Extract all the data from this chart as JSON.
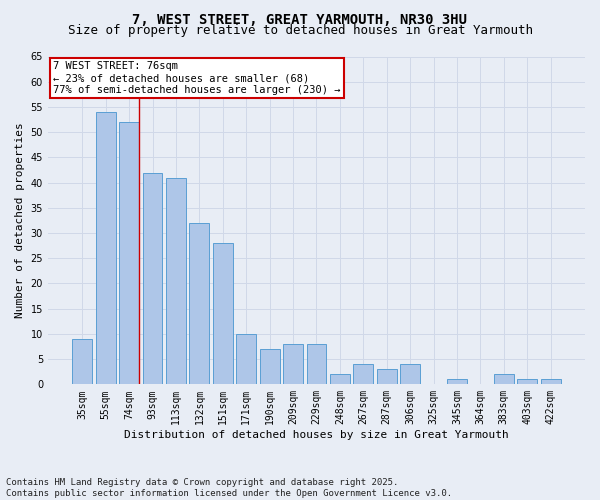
{
  "title1": "7, WEST STREET, GREAT YARMOUTH, NR30 3HU",
  "title2": "Size of property relative to detached houses in Great Yarmouth",
  "xlabel": "Distribution of detached houses by size in Great Yarmouth",
  "ylabel": "Number of detached properties",
  "categories": [
    "35sqm",
    "55sqm",
    "74sqm",
    "93sqm",
    "113sqm",
    "132sqm",
    "151sqm",
    "171sqm",
    "190sqm",
    "209sqm",
    "229sqm",
    "248sqm",
    "267sqm",
    "287sqm",
    "306sqm",
    "325sqm",
    "345sqm",
    "364sqm",
    "383sqm",
    "403sqm",
    "422sqm"
  ],
  "values": [
    9,
    54,
    52,
    42,
    41,
    32,
    28,
    10,
    7,
    8,
    8,
    2,
    4,
    3,
    4,
    0,
    1,
    0,
    2,
    1,
    1
  ],
  "bar_color": "#aec6e8",
  "bar_edge_color": "#5a9fd4",
  "grid_color": "#d0d8e8",
  "background_color": "#e8edf5",
  "annotation_box_text": "7 WEST STREET: 76sqm\n← 23% of detached houses are smaller (68)\n77% of semi-detached houses are larger (230) →",
  "annotation_box_color": "#ffffff",
  "annotation_box_edge_color": "#cc0000",
  "marker_line_color": "#cc0000",
  "ylim": [
    0,
    65
  ],
  "yticks": [
    0,
    5,
    10,
    15,
    20,
    25,
    30,
    35,
    40,
    45,
    50,
    55,
    60,
    65
  ],
  "footnote": "Contains HM Land Registry data © Crown copyright and database right 2025.\nContains public sector information licensed under the Open Government Licence v3.0.",
  "title1_fontsize": 10,
  "title2_fontsize": 9,
  "xlabel_fontsize": 8,
  "ylabel_fontsize": 8,
  "tick_fontsize": 7,
  "annot_fontsize": 7.5,
  "footnote_fontsize": 6.5
}
